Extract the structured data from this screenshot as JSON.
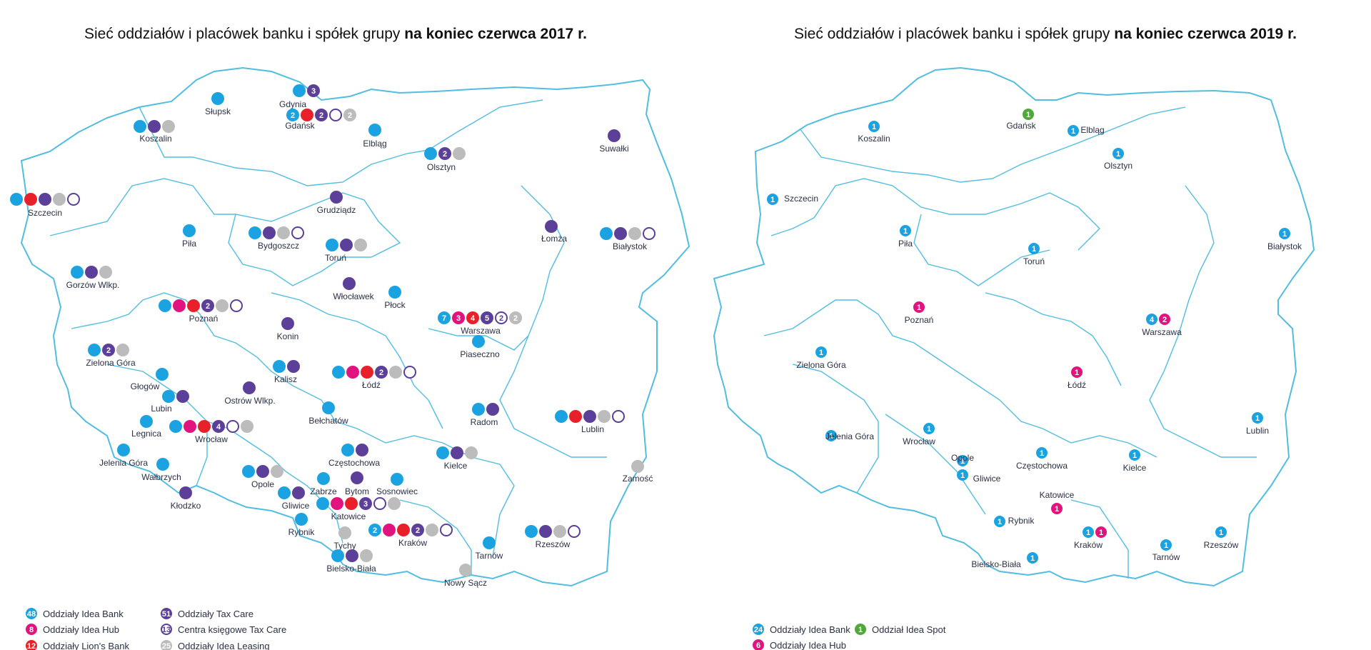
{
  "titles": {
    "left": {
      "prefix": "Sieć oddziałów i placówek banku i spółek grupy ",
      "bold": "na koniec czerwca 2017 r."
    },
    "right": {
      "prefix": "Sieć oddziałów i placówek banku i spółek grupy ",
      "bold": "na koniec czerwca 2019 r."
    }
  },
  "colors": {
    "idea_bank": "#1ba3e1",
    "idea_hub": "#e0137f",
    "lions_bank": "#e8202a",
    "tax_care": "#5b3f98",
    "tax_care_centre": "#5b3f98",
    "idea_leasing": "#bcbcbc",
    "idea_spot": "#4fa838",
    "border": "#52bde0"
  },
  "map_2017": {
    "cities": [
      {
        "name": "Słupsk",
        "markers": [
          {
            "t": "bank"
          }
        ]
      },
      {
        "name": "Koszalin",
        "markers": [
          {
            "t": "bank"
          },
          {
            "t": "tax"
          },
          {
            "t": "leasing"
          }
        ]
      },
      {
        "name": "Gdynia",
        "markers": [
          {
            "t": "bank"
          },
          {
            "t": "tax",
            "n": "3"
          }
        ]
      },
      {
        "name": "Gdańsk",
        "markers": [
          {
            "t": "bank",
            "n": "2"
          },
          {
            "t": "lions"
          },
          {
            "t": "tax",
            "n": "2"
          },
          {
            "t": "centre"
          },
          {
            "t": "leasing",
            "n": "2"
          }
        ]
      },
      {
        "name": "Elbląg",
        "markers": [
          {
            "t": "bank"
          }
        ]
      },
      {
        "name": "Olsztyn",
        "markers": [
          {
            "t": "bank"
          },
          {
            "t": "tax",
            "n": "2"
          },
          {
            "t": "leasing"
          }
        ]
      },
      {
        "name": "Suwałki",
        "markers": [
          {
            "t": "tax"
          }
        ]
      },
      {
        "name": "Szczecin",
        "markers": [
          {
            "t": "bank"
          },
          {
            "t": "lions"
          },
          {
            "t": "tax"
          },
          {
            "t": "leasing"
          },
          {
            "t": "centre"
          }
        ]
      },
      {
        "name": "Grudziądz",
        "markers": [
          {
            "t": "tax"
          }
        ]
      },
      {
        "name": "Piła",
        "markers": [
          {
            "t": "bank"
          }
        ]
      },
      {
        "name": "Bydgoszcz",
        "markers": [
          {
            "t": "bank"
          },
          {
            "t": "tax"
          },
          {
            "t": "leasing"
          },
          {
            "t": "centre"
          }
        ]
      },
      {
        "name": "Toruń",
        "markers": [
          {
            "t": "bank"
          },
          {
            "t": "tax"
          },
          {
            "t": "leasing"
          }
        ]
      },
      {
        "name": "Łomża",
        "markers": [
          {
            "t": "tax"
          }
        ]
      },
      {
        "name": "Białystok",
        "markers": [
          {
            "t": "bank"
          },
          {
            "t": "tax"
          },
          {
            "t": "leasing"
          },
          {
            "t": "centre"
          }
        ]
      },
      {
        "name": "Gorzów Wlkp.",
        "markers": [
          {
            "t": "bank"
          },
          {
            "t": "tax"
          },
          {
            "t": "leasing"
          }
        ]
      },
      {
        "name": "Włocławek",
        "markers": [
          {
            "t": "tax"
          }
        ]
      },
      {
        "name": "Płock",
        "markers": [
          {
            "t": "bank"
          }
        ]
      },
      {
        "name": "Poznań",
        "markers": [
          {
            "t": "bank"
          },
          {
            "t": "hub"
          },
          {
            "t": "lions"
          },
          {
            "t": "tax",
            "n": "2"
          },
          {
            "t": "leasing"
          },
          {
            "t": "centre"
          }
        ]
      },
      {
        "name": "Warszawa",
        "markers": [
          {
            "t": "bank",
            "n": "7"
          },
          {
            "t": "hub",
            "n": "3"
          },
          {
            "t": "lions",
            "n": "4"
          },
          {
            "t": "tax",
            "n": "5"
          },
          {
            "t": "centre",
            "n": "2"
          },
          {
            "t": "leasing",
            "n": "2"
          }
        ]
      },
      {
        "name": "Konin",
        "markers": [
          {
            "t": "tax"
          }
        ]
      },
      {
        "name": "Piaseczno",
        "markers": [
          {
            "t": "bank"
          }
        ]
      },
      {
        "name": "Zielona Góra",
        "markers": [
          {
            "t": "bank"
          },
          {
            "t": "tax",
            "n": "2"
          },
          {
            "t": "leasing"
          }
        ]
      },
      {
        "name": "Kalisz",
        "markers": [
          {
            "t": "bank"
          },
          {
            "t": "tax"
          }
        ]
      },
      {
        "name": "Łódź",
        "markers": [
          {
            "t": "bank"
          },
          {
            "t": "hub"
          },
          {
            "t": "lions"
          },
          {
            "t": "tax",
            "n": "2"
          },
          {
            "t": "leasing"
          },
          {
            "t": "centre"
          }
        ]
      },
      {
        "name": "Głogów",
        "markers": [
          {
            "t": "bank"
          }
        ]
      },
      {
        "name": "Lubin",
        "markers": [
          {
            "t": "bank"
          },
          {
            "t": "tax"
          }
        ]
      },
      {
        "name": "Ostrów Wlkp.",
        "markers": [
          {
            "t": "tax"
          }
        ]
      },
      {
        "name": "Bełchatów",
        "markers": [
          {
            "t": "bank"
          }
        ]
      },
      {
        "name": "Radom",
        "markers": [
          {
            "t": "bank"
          },
          {
            "t": "tax"
          }
        ]
      },
      {
        "name": "Lublin",
        "markers": [
          {
            "t": "bank"
          },
          {
            "t": "lions"
          },
          {
            "t": "tax"
          },
          {
            "t": "leasing"
          },
          {
            "t": "centre"
          }
        ]
      },
      {
        "name": "Legnica",
        "markers": [
          {
            "t": "bank"
          }
        ]
      },
      {
        "name": "Wrocław",
        "markers": [
          {
            "t": "bank"
          },
          {
            "t": "hub"
          },
          {
            "t": "lions"
          },
          {
            "t": "tax",
            "n": "4"
          },
          {
            "t": "centre"
          },
          {
            "t": "leasing"
          }
        ]
      },
      {
        "name": "Częstochowa",
        "markers": [
          {
            "t": "bank"
          },
          {
            "t": "tax"
          }
        ]
      },
      {
        "name": "Kielce",
        "markers": [
          {
            "t": "bank"
          },
          {
            "t": "tax"
          },
          {
            "t": "leasing"
          }
        ]
      },
      {
        "name": "Jelenia Góra",
        "markers": [
          {
            "t": "bank"
          }
        ]
      },
      {
        "name": "Wałbrzych",
        "markers": [
          {
            "t": "bank"
          }
        ]
      },
      {
        "name": "Opole",
        "markers": [
          {
            "t": "bank"
          },
          {
            "t": "tax"
          },
          {
            "t": "leasing"
          }
        ]
      },
      {
        "name": "Zamość",
        "markers": [
          {
            "t": "leasing"
          }
        ]
      },
      {
        "name": "Zabrze",
        "markers": [
          {
            "t": "bank"
          }
        ]
      },
      {
        "name": "Bytom",
        "markers": [
          {
            "t": "tax"
          }
        ]
      },
      {
        "name": "Sosnowiec",
        "markers": [
          {
            "t": "bank"
          }
        ]
      },
      {
        "name": "Gliwice",
        "markers": [
          {
            "t": "bank"
          },
          {
            "t": "tax"
          }
        ]
      },
      {
        "name": "Kłodzko",
        "markers": [
          {
            "t": "tax"
          }
        ]
      },
      {
        "name": "Katowice",
        "markers": [
          {
            "t": "bank"
          },
          {
            "t": "hub"
          },
          {
            "t": "lions"
          },
          {
            "t": "tax",
            "n": "3"
          },
          {
            "t": "centre"
          },
          {
            "t": "leasing"
          }
        ]
      },
      {
        "name": "Rybnik",
        "markers": [
          {
            "t": "bank"
          }
        ]
      },
      {
        "name": "Tychy",
        "markers": [
          {
            "t": "leasing"
          }
        ]
      },
      {
        "name": "Kraków",
        "markers": [
          {
            "t": "bank",
            "n": "2"
          },
          {
            "t": "hub"
          },
          {
            "t": "lions"
          },
          {
            "t": "tax",
            "n": "2"
          },
          {
            "t": "leasing"
          },
          {
            "t": "centre"
          }
        ]
      },
      {
        "name": "Rzeszów",
        "markers": [
          {
            "t": "bank"
          },
          {
            "t": "tax"
          },
          {
            "t": "leasing"
          },
          {
            "t": "centre"
          }
        ]
      },
      {
        "name": "Tarnów",
        "markers": [
          {
            "t": "bank"
          }
        ]
      },
      {
        "name": "Bielsko-Biała",
        "markers": [
          {
            "t": "bank"
          },
          {
            "t": "tax"
          },
          {
            "t": "leasing"
          }
        ]
      },
      {
        "name": "Nowy Sącz",
        "markers": [
          {
            "t": "leasing"
          }
        ]
      }
    ],
    "legend": [
      {
        "t": "bank",
        "n": "48",
        "label": "Oddziały Idea Bank"
      },
      {
        "t": "hub",
        "n": "8",
        "label": "Oddziały Idea Hub"
      },
      {
        "t": "lions",
        "n": "12",
        "label": "Oddziały Lion's Bank"
      },
      {
        "t": "tax",
        "n": "51",
        "label": "Oddziały Tax Care"
      },
      {
        "t": "centre",
        "n": "13",
        "label": "Centra księgowe Tax Care"
      },
      {
        "t": "leasing",
        "n": "25",
        "label": "Oddziały Idea Leasing"
      }
    ]
  },
  "map_2019": {
    "cities": [
      {
        "name": "Koszalin",
        "markers": [
          {
            "t": "bank",
            "n": "1"
          }
        ]
      },
      {
        "name": "Gdańsk",
        "markers": [
          {
            "t": "spot",
            "n": "1"
          }
        ]
      },
      {
        "name": "Elbląg",
        "markers": [
          {
            "t": "bank",
            "n": "1"
          }
        ]
      },
      {
        "name": "Olsztyn",
        "markers": [
          {
            "t": "bank",
            "n": "1"
          }
        ]
      },
      {
        "name": "Szczecin",
        "markers": [
          {
            "t": "bank",
            "n": "1"
          }
        ]
      },
      {
        "name": "Piła",
        "markers": [
          {
            "t": "bank",
            "n": "1"
          }
        ]
      },
      {
        "name": "Toruń",
        "markers": [
          {
            "t": "bank",
            "n": "1"
          }
        ]
      },
      {
        "name": "Białystok",
        "markers": [
          {
            "t": "bank",
            "n": "1"
          }
        ]
      },
      {
        "name": "Poznań",
        "markers": [
          {
            "t": "hub",
            "n": "1"
          }
        ]
      },
      {
        "name": "Warszawa",
        "markers": [
          {
            "t": "bank",
            "n": "4"
          },
          {
            "t": "hub",
            "n": "2"
          }
        ]
      },
      {
        "name": "Zielona Góra",
        "markers": [
          {
            "t": "bank",
            "n": "1"
          }
        ]
      },
      {
        "name": "Łódź",
        "markers": [
          {
            "t": "hub",
            "n": "1"
          }
        ]
      },
      {
        "name": "Lublin",
        "markers": [
          {
            "t": "bank",
            "n": "1"
          }
        ]
      },
      {
        "name": "Jelenia Góra",
        "markers": [
          {
            "t": "bank",
            "n": "1"
          }
        ]
      },
      {
        "name": "Wrocław",
        "markers": [
          {
            "t": "bank",
            "n": "1"
          }
        ]
      },
      {
        "name": "Opole",
        "markers": [
          {
            "t": "bank",
            "n": "1"
          }
        ]
      },
      {
        "name": "Częstochowa",
        "markers": [
          {
            "t": "bank",
            "n": "1"
          }
        ]
      },
      {
        "name": "Kielce",
        "markers": [
          {
            "t": "bank",
            "n": "1"
          }
        ]
      },
      {
        "name": "Gliwice",
        "markers": [
          {
            "t": "bank",
            "n": "1"
          }
        ]
      },
      {
        "name": "Katowice",
        "markers": [
          {
            "t": "hub",
            "n": "1"
          }
        ]
      },
      {
        "name": "Rybnik",
        "markers": [
          {
            "t": "bank",
            "n": "1"
          }
        ]
      },
      {
        "name": "Kraków",
        "markers": [
          {
            "t": "bank",
            "n": "1"
          },
          {
            "t": "hub",
            "n": "1"
          }
        ]
      },
      {
        "name": "Tarnów",
        "markers": [
          {
            "t": "bank",
            "n": "1"
          }
        ]
      },
      {
        "name": "Rzeszów",
        "markers": [
          {
            "t": "bank",
            "n": "1"
          }
        ]
      },
      {
        "name": "Bielsko-Biała",
        "markers": [
          {
            "t": "bank",
            "n": "1"
          }
        ]
      }
    ],
    "legend": [
      {
        "t": "bank",
        "n": "24",
        "label": "Oddziały Idea Bank"
      },
      {
        "t": "spot",
        "n": "1",
        "label": "Oddział Idea Spot"
      },
      {
        "t": "hub",
        "n": "6",
        "label": "Oddziały Idea Hub"
      }
    ]
  }
}
